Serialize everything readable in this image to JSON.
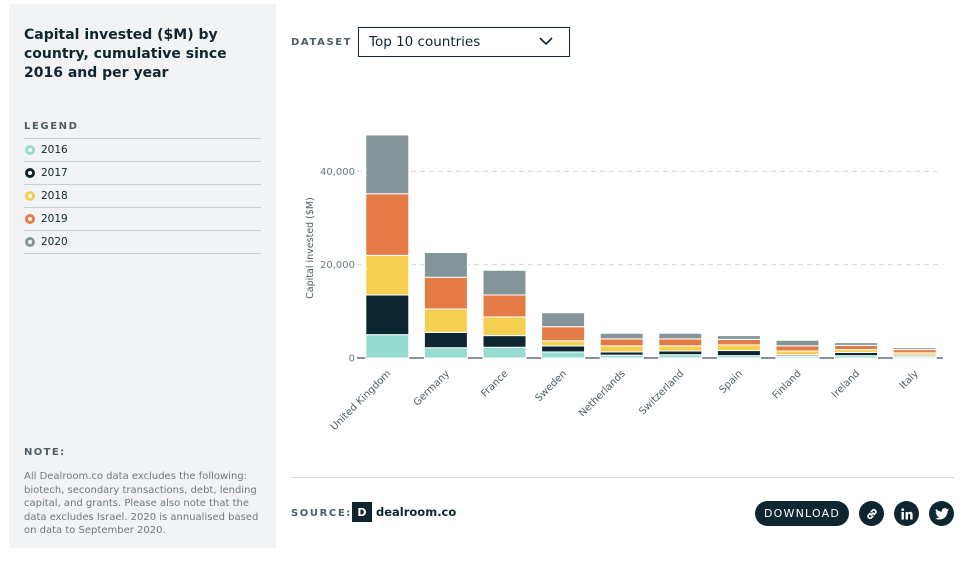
{
  "sidebar": {
    "title": "Capital invested ($M) by country, cumulative since 2016 and per year",
    "legend_heading": "LEGEND",
    "legend": [
      {
        "label": "2016",
        "color": "#96dcd0"
      },
      {
        "label": "2017",
        "color": "#0d2630"
      },
      {
        "label": "2018",
        "color": "#f5cf4f"
      },
      {
        "label": "2019",
        "color": "#e47a46"
      },
      {
        "label": "2020",
        "color": "#849599"
      }
    ],
    "note_heading": "NOTE:",
    "note_text": "All Dealroom.co data excludes the following: biotech, secondary transactions, debt, lending capital, and grants. Please also note that the data excludes Israel. 2020 is annualised based on data to September 2020."
  },
  "dataset": {
    "label": "DATASET",
    "selected": "Top 10 countries"
  },
  "chart_data": {
    "type": "bar",
    "stacked": true,
    "ylabel": "Capital invested ($M)",
    "ylim": [
      0,
      48000
    ],
    "yticks": [
      0,
      20000,
      40000
    ],
    "ytick_labels": [
      "0",
      "20,000",
      "40,000"
    ],
    "grid": "horizontal dashed",
    "categories": [
      "United Kingdom",
      "Germany",
      "France",
      "Sweden",
      "Netherlands",
      "Switzerland",
      "Spain",
      "Finland",
      "Ireland",
      "Italy"
    ],
    "series": [
      {
        "name": "2016",
        "color": "#96dcd0",
        "values": [
          5000,
          2200,
          2300,
          1300,
          600,
          700,
          500,
          400,
          500,
          300
        ]
      },
      {
        "name": "2017",
        "color": "#0d2630",
        "values": [
          8500,
          3300,
          2500,
          1300,
          700,
          800,
          1100,
          300,
          700,
          300
        ]
      },
      {
        "name": "2018",
        "color": "#f5cf4f",
        "values": [
          8500,
          5000,
          4000,
          1100,
          1300,
          1100,
          1200,
          800,
          600,
          500
        ]
      },
      {
        "name": "2019",
        "color": "#e47a46",
        "values": [
          13200,
          6800,
          4700,
          3000,
          1500,
          1500,
          1200,
          1100,
          900,
          700
        ]
      },
      {
        "name": "2020",
        "color": "#849599",
        "values": [
          12600,
          5300,
          5300,
          3000,
          1200,
          1200,
          800,
          1200,
          600,
          400
        ]
      }
    ]
  },
  "footer": {
    "source_label": "SOURCE:",
    "logo_mark": "D",
    "logo_text": "dealroom.co",
    "download_label": "DOWNLOAD"
  },
  "icons": {
    "link": "link-icon",
    "linkedin": "linkedin-icon",
    "twitter": "twitter-icon"
  }
}
